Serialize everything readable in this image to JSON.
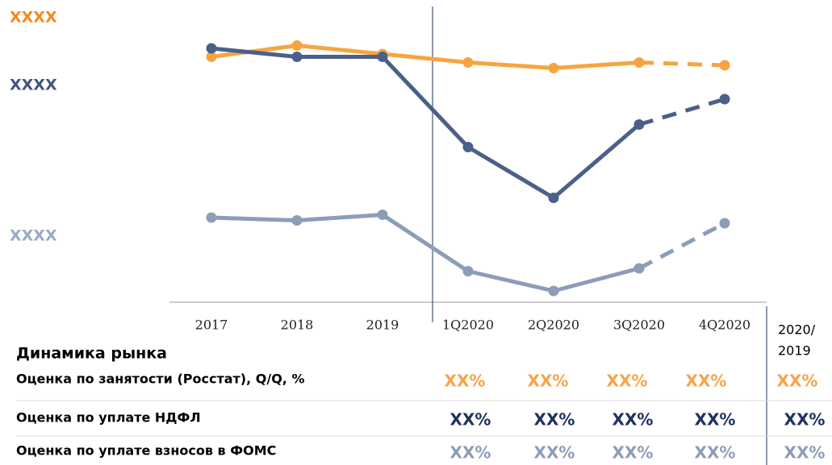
{
  "chart_data": {
    "type": "line",
    "categories": [
      "2017",
      "2018",
      "2019",
      "1Q2020",
      "2Q2020",
      "3Q2020",
      "4Q2020"
    ],
    "ylim": [
      0,
      100
    ],
    "dashed_from_index": 5,
    "series": [
      {
        "name": "XXXX",
        "color": "#f7a440",
        "label_color": "#f28a1c",
        "values": [
          87,
          91,
          88,
          85,
          83,
          85,
          84
        ]
      },
      {
        "name": "XXXX",
        "color": "#4a6089",
        "label_color": "#3f5680",
        "values": [
          90,
          87,
          87,
          55,
          37,
          63,
          72
        ]
      },
      {
        "name": "XXXX",
        "color": "#8c9db8",
        "label_color": "#9aa9c4",
        "values": [
          30,
          29,
          31,
          11,
          4,
          12,
          28
        ]
      }
    ]
  },
  "table": {
    "title": "Динамика рынка",
    "header_lines": [
      "2020/",
      "2019"
    ],
    "rows": [
      {
        "label": "Оценка по занятости (Росстат), Q/Q, %",
        "color": "#f5a54a",
        "values": [
          "XX%",
          "XX%",
          "XX%",
          "XX%",
          "XX%"
        ]
      },
      {
        "label": "Оценка по уплате НДФЛ",
        "color": "#1f3360",
        "values": [
          "XX%",
          "XX%",
          "XX%",
          "XX%",
          "XX%"
        ]
      },
      {
        "label": "Оценка по уплате взносов в ФОМС",
        "color": "#8c9db8",
        "values": [
          "XX%",
          "XX%",
          "XX%",
          "XX%",
          "XX%"
        ]
      }
    ]
  }
}
